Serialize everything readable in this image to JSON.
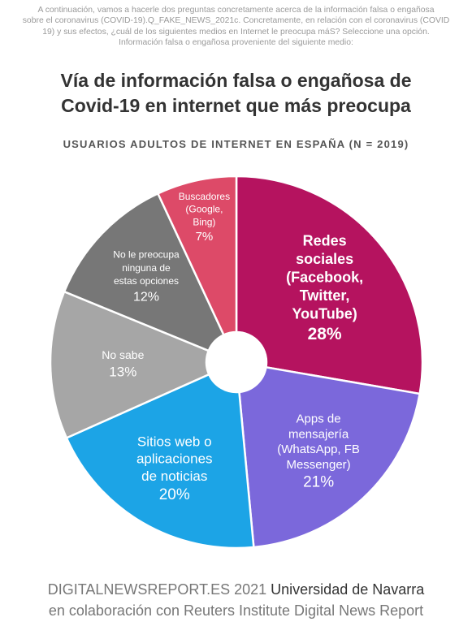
{
  "question": [
    "A continuación, vamos a hacerle dos preguntas concretamente acerca de la información falsa o engañosa",
    "sobre el coronavirus (COVID-19).Q_FAKE_NEWS_2021c. Concretamente, en relación con el coronavirus (COVID",
    "19) y sus efectos, ¿cuál de los siguientes medios en Internet le preocupa máS? Seleccione una opción.",
    "Información falsa o engañosa proveniente del siguiente medio:"
  ],
  "footer": {
    "site": "DIGITALNEWSREPORT.ES 2021",
    "university": "Universidad de Navarra",
    "collab": "en colaboración con Reuters Institute Digital News Report"
  },
  "chart_data": {
    "type": "pie",
    "title_lines": [
      "Vía de información falsa o engañosa de",
      "Covid-19 en internet que más preocupa"
    ],
    "subtitle": "USUARIOS ADULTOS DE INTERNET EN ESPAÑA (N = 2019)",
    "donut": true,
    "start": "12 o'clock",
    "direction": "clockwise",
    "slices": [
      {
        "label_lines": [
          "Redes",
          "sociales",
          "(Facebook,",
          "Twitter,",
          "YouTube)"
        ],
        "value": 28,
        "value_label": "28%",
        "color": "#b5135f"
      },
      {
        "label_lines": [
          "Apps de",
          "mensajería",
          "(WhatsApp, FB",
          "Messenger)"
        ],
        "value": 21,
        "value_label": "21%",
        "color": "#7b68db"
      },
      {
        "label_lines": [
          "Sitios web o",
          "aplicaciones",
          "de noticias"
        ],
        "value": 20,
        "value_label": "20%",
        "color": "#1ca4e6"
      },
      {
        "label_lines": [
          "No sabe"
        ],
        "value": 13,
        "value_label": "13%",
        "color": "#a6a6a6"
      },
      {
        "label_lines": [
          "No le preocupa",
          "ninguna de",
          "estas opciones"
        ],
        "value": 12,
        "value_label": "12%",
        "color": "#777777"
      },
      {
        "label_lines": [
          "Buscadores",
          "(Google,",
          "Bing)"
        ],
        "value": 7,
        "value_label": "7%",
        "color": "#dd4a68"
      }
    ]
  }
}
